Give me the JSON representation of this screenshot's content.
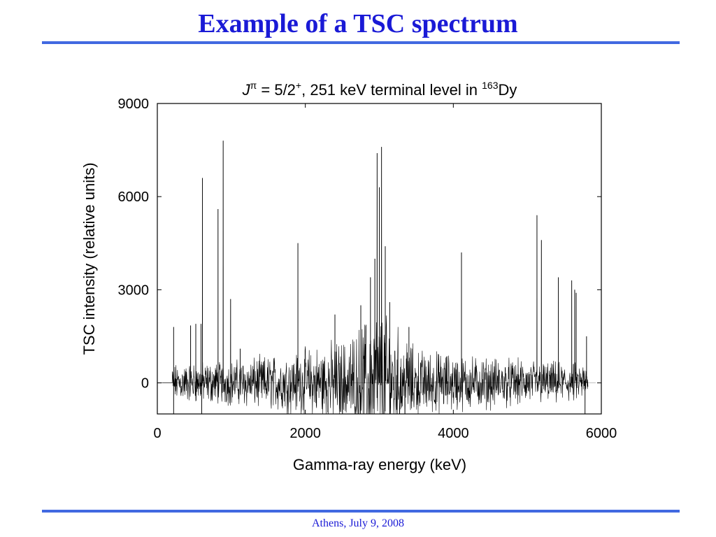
{
  "slide": {
    "title": "Example of a TSC spectrum",
    "footer": "Athens, July 9, 2008",
    "accent_color": "#1a1ad6",
    "rule_color": "#4169e1"
  },
  "chart_data": {
    "type": "line",
    "title_parts": {
      "j": "J",
      "pi": "π",
      "eq": " = 5/2",
      "plus": "+",
      "rest": ", 251 keV terminal level in ",
      "iso_mass": "163",
      "iso_elem": "Dy"
    },
    "xlabel": "Gamma-ray energy (keV)",
    "ylabel": "TSC intensity (relative units)",
    "xlim": [
      0,
      6000
    ],
    "ylim": [
      -1000,
      9000
    ],
    "xticks": [
      0,
      2000,
      4000,
      6000
    ],
    "yticks": [
      0,
      3000,
      6000,
      9000
    ],
    "x_tick_labels": [
      "0",
      "2000",
      "4000",
      "6000"
    ],
    "y_tick_labels": [
      "0",
      "3000",
      "6000",
      "9000"
    ],
    "grid": false,
    "line_color": "#000000",
    "series": [
      {
        "noise_range": [
          200,
          5820
        ],
        "noise_envelope": [
          [
            200,
            500
          ],
          [
            1000,
            600
          ],
          [
            1800,
            800
          ],
          [
            2600,
            1200
          ],
          [
            2950,
            2000
          ],
          [
            3100,
            1800
          ],
          [
            3500,
            900
          ],
          [
            4300,
            700
          ],
          [
            5000,
            600
          ],
          [
            5820,
            500
          ]
        ],
        "peaks": [
          [
            220,
            1800
          ],
          [
            450,
            1850
          ],
          [
            520,
            1900
          ],
          [
            590,
            1900
          ],
          [
            610,
            6600
          ],
          [
            820,
            5600
          ],
          [
            890,
            7800
          ],
          [
            990,
            2700
          ],
          [
            1120,
            1100
          ],
          [
            1900,
            4500
          ],
          [
            2400,
            2200
          ],
          [
            2750,
            2500
          ],
          [
            2880,
            3400
          ],
          [
            2940,
            4000
          ],
          [
            2970,
            7400
          ],
          [
            3000,
            6300
          ],
          [
            3030,
            7600
          ],
          [
            3080,
            4400
          ],
          [
            3140,
            2600
          ],
          [
            3400,
            1800
          ],
          [
            4110,
            4200
          ],
          [
            5130,
            5400
          ],
          [
            5190,
            4600
          ],
          [
            5420,
            3400
          ],
          [
            5600,
            3300
          ],
          [
            5640,
            3000
          ],
          [
            5660,
            2900
          ],
          [
            5800,
            1500
          ]
        ],
        "dips": [
          [
            220,
            -1000
          ],
          [
            600,
            -1000
          ],
          [
            5780,
            -1000
          ]
        ]
      }
    ]
  }
}
